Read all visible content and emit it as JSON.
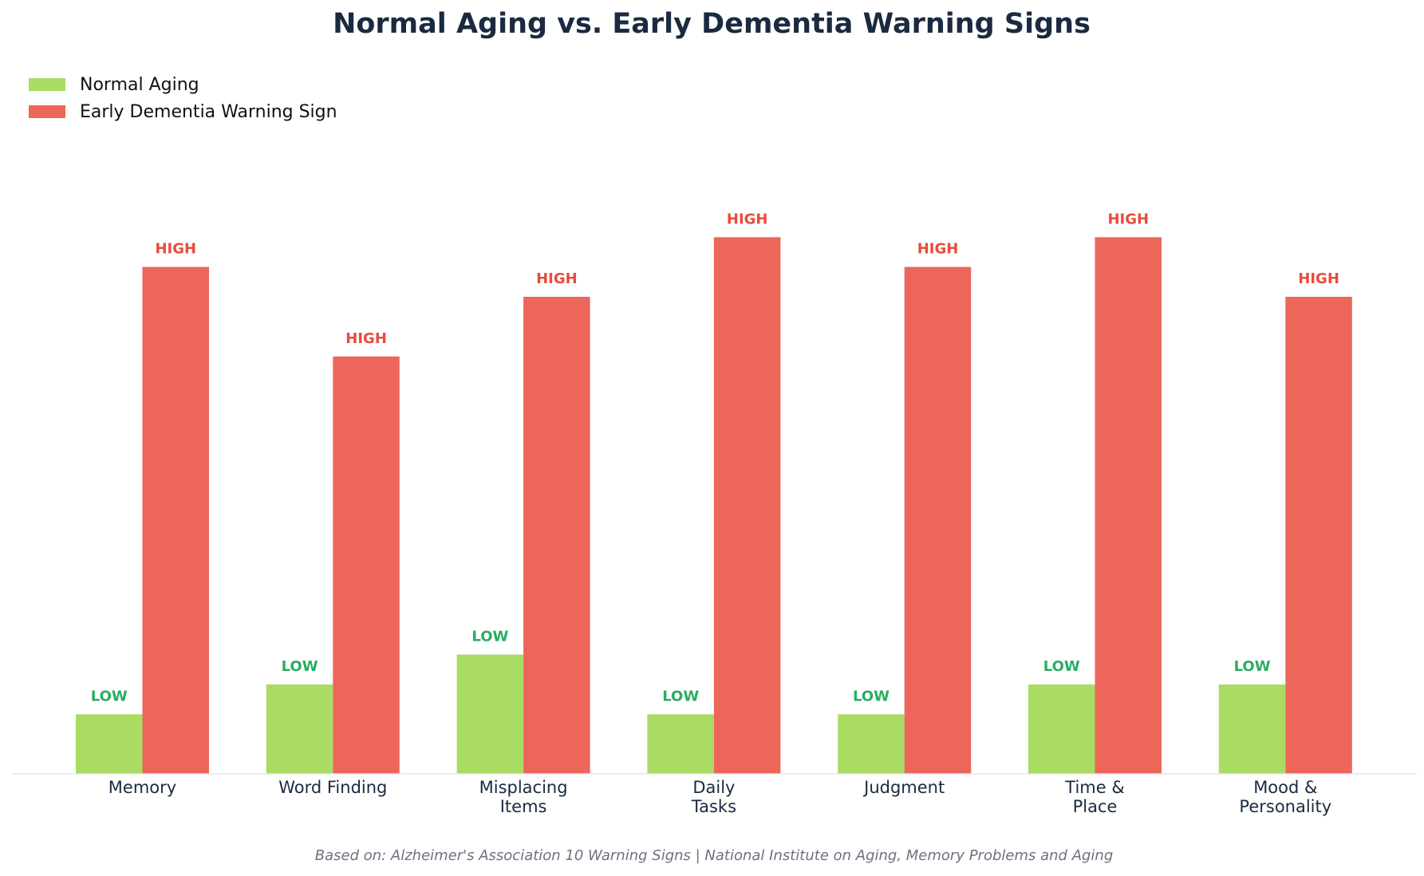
{
  "chart_data": {
    "type": "bar",
    "title": "Normal Aging vs. Early Dementia Warning Signs",
    "subtitle": "",
    "xlabel": "",
    "ylabel": "",
    "ylim": [
      0,
      10
    ],
    "grid": false,
    "legend_position": "top-left",
    "categories": [
      [
        "Memory"
      ],
      [
        "Word Finding"
      ],
      [
        "Misplacing",
        "Items"
      ],
      [
        "Daily",
        "Tasks"
      ],
      [
        "Judgment"
      ],
      [
        "Time &",
        "Place"
      ],
      [
        "Mood &",
        "Personality"
      ]
    ],
    "series": [
      {
        "name": "Normal Aging",
        "color": "#aadb63",
        "label_color": "#27ae60",
        "values": [
          1.0,
          1.5,
          2.0,
          1.0,
          1.0,
          1.5,
          1.5
        ],
        "data_labels": [
          "LOW",
          "LOW",
          "LOW",
          "LOW",
          "LOW",
          "LOW",
          "LOW"
        ]
      },
      {
        "name": "Early Dementia Warning Sign",
        "color": "#ec665a",
        "label_color": "#e74c3c",
        "values": [
          8.5,
          7.0,
          8.0,
          9.0,
          8.5,
          9.0,
          8.0
        ],
        "data_labels": [
          "HIGH",
          "HIGH",
          "HIGH",
          "HIGH",
          "HIGH",
          "HIGH",
          "HIGH"
        ]
      }
    ],
    "footnote": "Based on: Alzheimer's Association 10 Warning Signs | National Institute on Aging, Memory Problems and Aging"
  },
  "colors": {
    "title": "#1b2a40",
    "category_label": "#1b2a40",
    "footnote": "#6b7280",
    "baseline": "#e5e7eb"
  }
}
